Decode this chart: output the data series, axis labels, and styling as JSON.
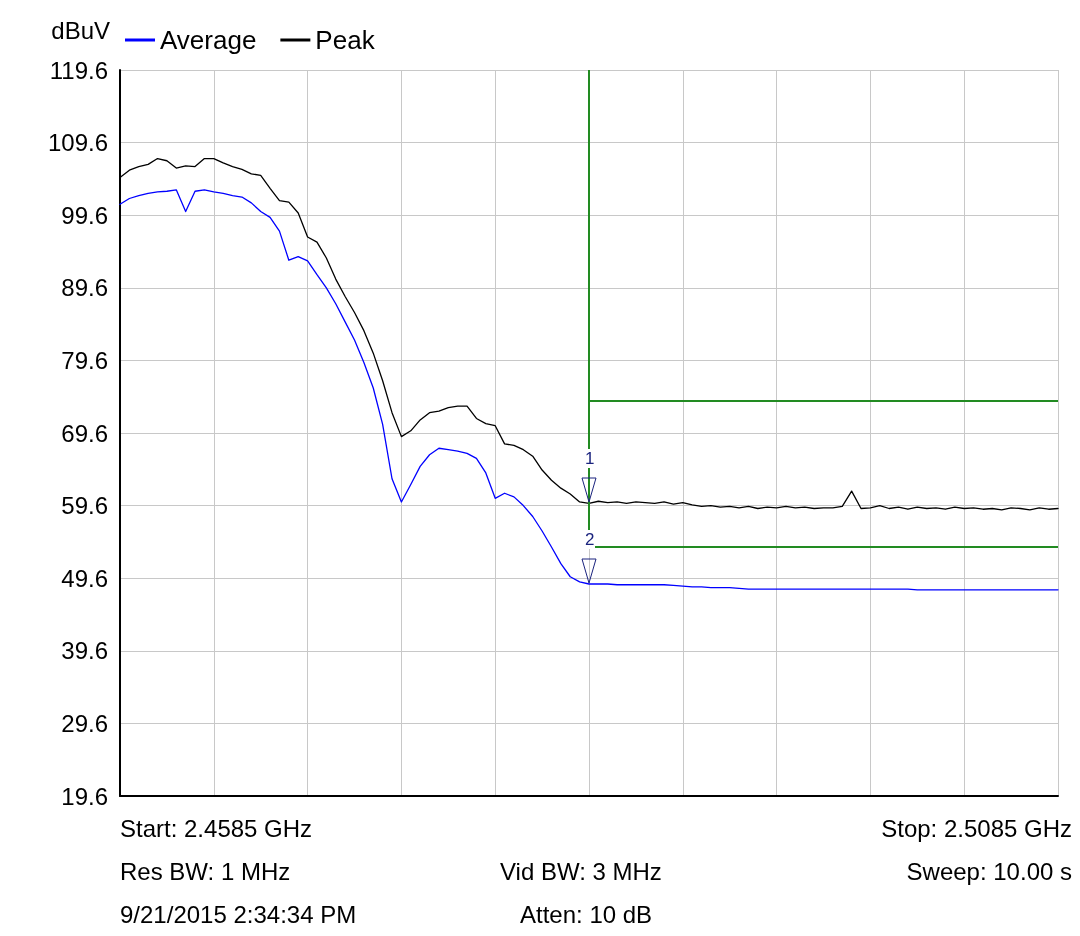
{
  "chart_data": {
    "type": "line",
    "ylabel": "dBuV",
    "ylim": [
      19.6,
      119.6
    ],
    "categories": [
      null,
      null,
      null,
      null,
      null,
      null,
      null,
      null,
      null,
      null,
      null,
      null,
      null,
      null,
      null,
      null,
      null,
      null,
      null,
      null,
      null,
      null,
      null,
      null,
      null,
      null,
      null,
      null,
      null,
      null,
      null,
      null,
      null,
      null,
      null,
      null,
      null,
      null,
      null,
      null,
      null,
      null,
      null,
      null,
      null,
      null,
      null,
      null,
      null,
      null,
      null,
      null,
      null,
      null,
      null,
      null,
      null,
      null,
      null,
      null,
      null,
      null,
      null,
      null,
      null,
      null,
      null,
      null,
      null,
      null,
      null,
      null,
      null,
      null,
      null,
      null,
      null,
      null,
      null,
      null,
      null,
      null,
      null,
      null,
      null,
      null,
      null,
      null,
      null,
      null,
      null,
      null,
      null,
      null,
      null,
      null,
      null,
      null,
      null,
      null,
      null
    ],
    "yticks": [
      19.6,
      29.6,
      39.6,
      49.6,
      59.6,
      69.6,
      79.6,
      89.6,
      99.6,
      109.6,
      119.6
    ],
    "tick_labels": "y",
    "grid": true,
    "legend": "top left",
    "marker": "none",
    "line_style": "solid",
    "series": [
      {
        "name": "Average",
        "color": "#0000ff",
        "values": [
          101.1,
          101.9,
          102.3,
          102.6,
          102.8,
          102.9,
          103.1,
          100.1,
          102.9,
          103.1,
          102.8,
          102.6,
          102.3,
          102.1,
          101.3,
          100.1,
          99.3,
          97.4,
          93.4,
          93.9,
          93.3,
          91.4,
          89.6,
          87.4,
          84.9,
          82.4,
          79.3,
          75.8,
          70.8,
          63.3,
          60.1,
          62.5,
          65.0,
          66.6,
          67.5,
          67.3,
          67.1,
          66.8,
          66.1,
          64.1,
          60.6,
          61.3,
          60.8,
          59.6,
          58.1,
          56.1,
          53.9,
          51.6,
          49.8,
          49.1,
          48.8,
          48.8,
          48.8,
          48.7,
          48.7,
          48.7,
          48.7,
          48.7,
          48.7,
          48.6,
          48.5,
          48.4,
          48.4,
          48.3,
          48.3,
          48.3,
          48.2,
          48.1,
          48.1,
          48.1,
          48.1,
          48.1,
          48.1,
          48.1,
          48.1,
          48.1,
          48.1,
          48.1,
          48.1,
          48.1,
          48.1,
          48.1,
          48.1,
          48.1,
          48.1,
          48.0,
          48.0,
          48.0,
          48.0,
          48.0,
          48.0,
          48.0,
          48.0,
          48.0,
          48.0,
          48.0,
          48.0,
          48.0,
          48.0,
          48.0,
          48.0
        ]
      },
      {
        "name": "Peak",
        "color": "#000000",
        "values": [
          104.8,
          105.8,
          106.3,
          106.6,
          107.4,
          107.1,
          106.1,
          106.4,
          106.3,
          107.4,
          107.4,
          106.8,
          106.3,
          105.9,
          105.3,
          105.1,
          103.3,
          101.6,
          101.4,
          99.9,
          96.6,
          95.9,
          93.7,
          90.8,
          88.4,
          86.2,
          83.7,
          80.6,
          76.8,
          72.4,
          69.1,
          69.9,
          71.4,
          72.4,
          72.6,
          73.1,
          73.3,
          73.3,
          71.6,
          70.9,
          70.6,
          68.1,
          67.9,
          67.3,
          66.4,
          64.5,
          63.1,
          62.0,
          61.2,
          60.1,
          59.9,
          60.2,
          60.0,
          60.1,
          59.9,
          60.1,
          60.0,
          59.9,
          60.1,
          59.8,
          60.0,
          59.7,
          59.5,
          59.6,
          59.4,
          59.5,
          59.3,
          59.5,
          59.2,
          59.4,
          59.3,
          59.5,
          59.3,
          59.4,
          59.2,
          59.3,
          59.3,
          59.5,
          61.6,
          59.2,
          59.3,
          59.6,
          59.2,
          59.4,
          59.1,
          59.4,
          59.2,
          59.3,
          59.1,
          59.4,
          59.2,
          59.3,
          59.1,
          59.2,
          59.0,
          59.3,
          59.2,
          59.0,
          59.3,
          59.1,
          59.2
        ]
      }
    ],
    "ref_lines": [
      {
        "axis": "y",
        "value": 74.0,
        "color": "#228b22"
      },
      {
        "axis": "y",
        "value": 54.0,
        "color": "#228b22"
      }
    ],
    "annotations": [
      "Start: 2.4585 GHz",
      "Stop: 2.5085 GHz",
      "Res BW: 1 MHz",
      "Vid BW: 3 MHz",
      "Sweep: 10.00 s",
      "9/21/2015 2:34:34 PM",
      "Atten: 10 dB",
      {
        "text": "1",
        "y": 60.0
      },
      {
        "text": "2",
        "y": 48.8
      }
    ]
  }
}
